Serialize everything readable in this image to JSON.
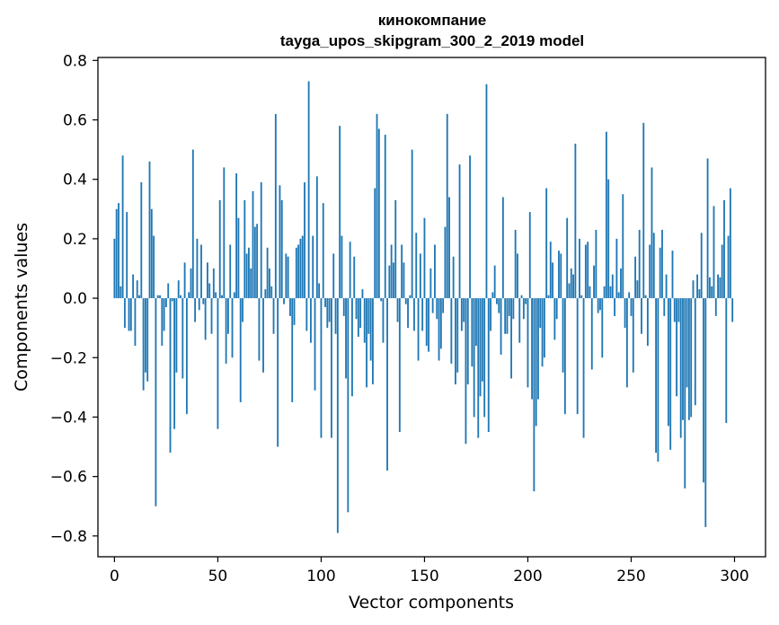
{
  "chart_data": {
    "type": "bar",
    "title": "кинокомпание",
    "subtitle": "tayga_upos_skipgram_300_2_2019 model",
    "xlabel": "Vector components",
    "ylabel": "Components values",
    "xlim": [
      -8,
      315
    ],
    "ylim": [
      -0.87,
      0.81
    ],
    "x_ticks": [
      0,
      50,
      100,
      150,
      200,
      250,
      300
    ],
    "x_tick_labels": [
      "0",
      "50",
      "100",
      "150",
      "200",
      "250",
      "300"
    ],
    "y_ticks": [
      0.8,
      0.6,
      0.4,
      0.2,
      0.0,
      -0.2,
      -0.4,
      -0.6,
      -0.8
    ],
    "y_tick_labels": [
      "0.8",
      "0.6",
      "0.4",
      "0.2",
      "0.0",
      "−0.2",
      "−0.4",
      "−0.6",
      "−0.8"
    ],
    "grid": false,
    "bar_color": "#1f77b4",
    "x": "0..299 (one bar per component index)",
    "values": [
      0.2,
      0.3,
      0.32,
      0.04,
      0.48,
      -0.1,
      0.29,
      -0.11,
      -0.11,
      0.08,
      -0.16,
      0.06,
      0.01,
      0.39,
      -0.31,
      -0.25,
      -0.28,
      0.46,
      0.3,
      0.21,
      -0.7,
      0.01,
      0.01,
      -0.16,
      -0.11,
      -0.03,
      0.05,
      -0.52,
      -0.01,
      -0.44,
      -0.25,
      0.06,
      0.01,
      -0.27,
      0.12,
      -0.39,
      0.02,
      0.1,
      0.5,
      -0.08,
      0.2,
      -0.04,
      0.18,
      -0.02,
      -0.14,
      0.12,
      0.05,
      -0.12,
      0.1,
      0.02,
      -0.44,
      0.33,
      0.01,
      0.44,
      -0.22,
      -0.12,
      0.18,
      -0.2,
      0.02,
      0.42,
      0.27,
      -0.35,
      -0.08,
      0.33,
      0.15,
      0.17,
      0.1,
      0.36,
      0.24,
      0.25,
      -0.21,
      0.39,
      -0.25,
      0.03,
      0.17,
      0.1,
      0.04,
      -0.12,
      0.62,
      -0.5,
      0.38,
      0.33,
      -0.02,
      0.15,
      0.14,
      -0.06,
      -0.35,
      -0.09,
      0.17,
      0.18,
      0.2,
      0.21,
      0.39,
      -0.11,
      0.73,
      -0.15,
      0.21,
      -0.31,
      0.41,
      0.05,
      -0.47,
      0.32,
      -0.03,
      -0.1,
      -0.08,
      -0.47,
      0.15,
      -0.12,
      -0.79,
      0.58,
      0.21,
      -0.06,
      -0.27,
      -0.72,
      0.19,
      -0.33,
      0.14,
      -0.07,
      -0.13,
      -0.1,
      0.03,
      -0.15,
      -0.3,
      -0.12,
      -0.21,
      -0.29,
      0.37,
      0.62,
      0.57,
      -0.01,
      -0.15,
      0.55,
      -0.58,
      0.11,
      0.18,
      0.12,
      0.33,
      -0.08,
      -0.45,
      0.18,
      0.12,
      -0.02,
      -0.1,
      0.01,
      0.5,
      -0.11,
      0.22,
      -0.21,
      0.15,
      -0.11,
      0.27,
      -0.16,
      -0.18,
      0.1,
      -0.05,
      0.18,
      -0.07,
      -0.21,
      -0.17,
      -0.05,
      0.24,
      0.62,
      0.34,
      -0.22,
      0.14,
      -0.29,
      -0.25,
      0.45,
      -0.11,
      -0.08,
      -0.49,
      -0.29,
      0.48,
      -0.23,
      -0.4,
      -0.16,
      -0.47,
      -0.33,
      -0.28,
      -0.4,
      0.72,
      -0.45,
      -0.11,
      0.02,
      0.11,
      -0.02,
      -0.05,
      -0.19,
      0.34,
      -0.12,
      -0.12,
      -0.06,
      -0.27,
      -0.07,
      0.23,
      0.15,
      -0.15,
      0.01,
      -0.07,
      -0.02,
      -0.3,
      0.29,
      -0.34,
      -0.65,
      -0.43,
      -0.34,
      -0.1,
      -0.23,
      -0.2,
      0.37,
      0.01,
      0.19,
      0.12,
      -0.14,
      -0.07,
      0.16,
      0.15,
      -0.25,
      -0.39,
      0.27,
      0.05,
      0.1,
      0.08,
      0.52,
      -0.39,
      0.2,
      0.01,
      -0.47,
      0.18,
      0.19,
      0.04,
      -0.24,
      0.11,
      0.23,
      -0.05,
      -0.04,
      -0.2,
      0.04,
      0.56,
      0.4,
      0.04,
      0.08,
      -0.06,
      0.2,
      0.02,
      0.1,
      0.35,
      -0.1,
      -0.3,
      0.02,
      -0.06,
      -0.25,
      0.14,
      0.06,
      0.23,
      -0.12,
      0.59,
      0.01,
      -0.16,
      0.18,
      0.44,
      0.22,
      -0.52,
      -0.55,
      0.17,
      0.23,
      -0.06,
      0.08,
      -0.43,
      -0.51,
      0.16,
      -0.08,
      -0.33,
      -0.08,
      -0.47,
      -0.41,
      -0.64,
      -0.3,
      -0.41,
      -0.4,
      0.06,
      -0.36,
      0.08,
      0.03,
      0.22,
      -0.62,
      -0.77,
      0.47,
      0.07,
      0.04,
      0.31,
      -0.06,
      0.08,
      0.07,
      0.18,
      0.33,
      -0.42,
      0.21,
      0.37,
      -0.08
    ]
  }
}
